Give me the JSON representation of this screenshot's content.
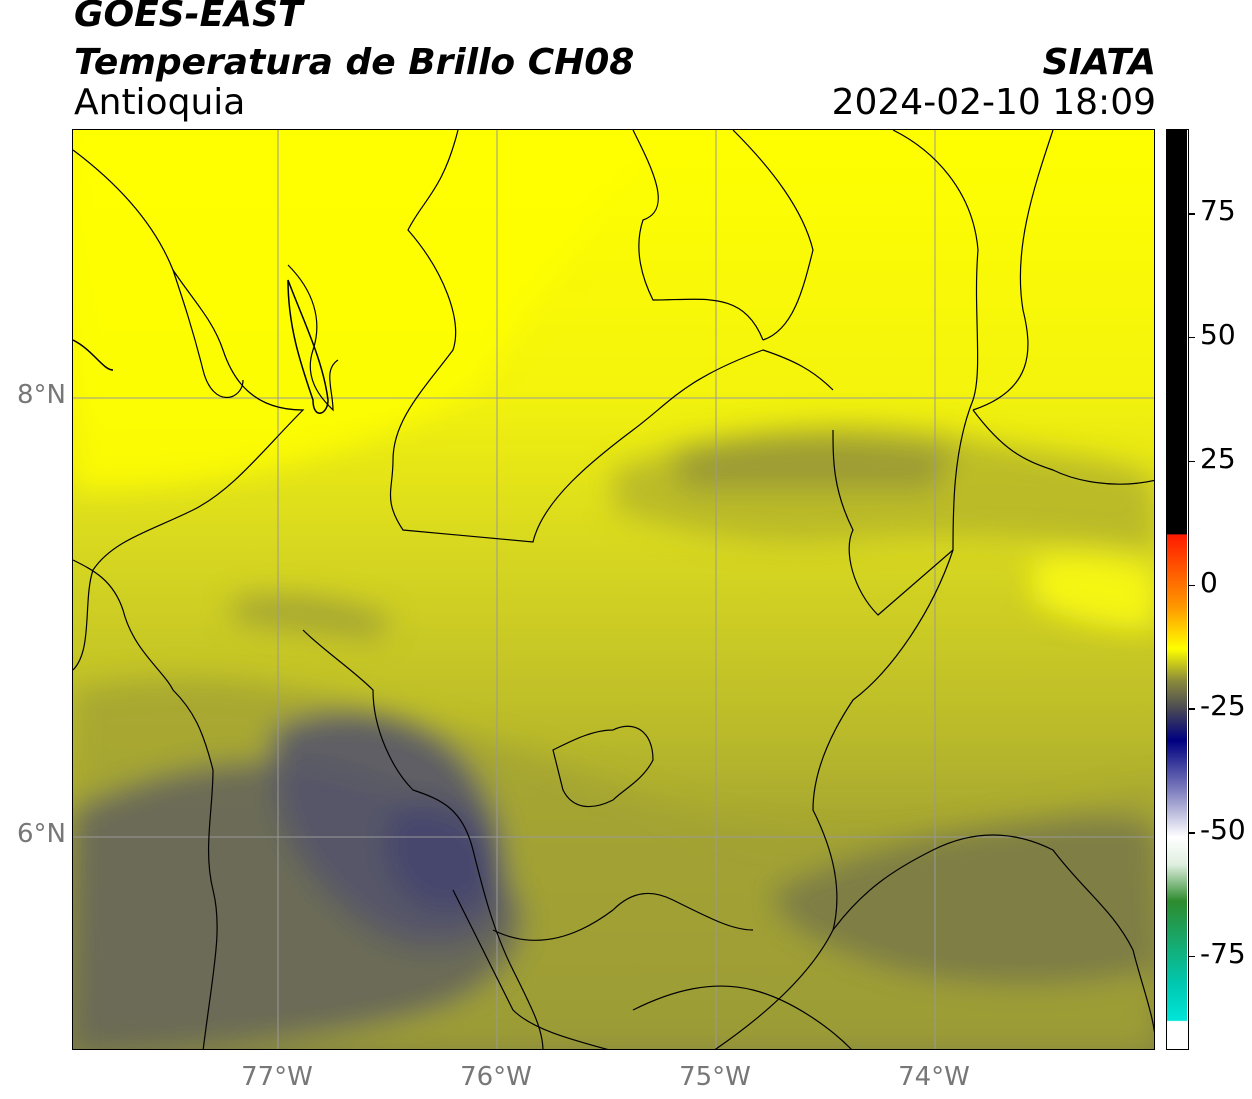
{
  "header": {
    "satellite": "GOES-EAST",
    "product": "Temperatura de Brillo CH08",
    "region": "Antioquia",
    "organization": "SIATA",
    "timestamp": "2024-02-10 18:09"
  },
  "axes": {
    "lat_labels": [
      {
        "label": "8°N",
        "value": 8
      },
      {
        "label": "6°N",
        "value": 6
      }
    ],
    "lon_labels": [
      {
        "label": "77°W",
        "value": -77
      },
      {
        "label": "76°W",
        "value": -76
      },
      {
        "label": "75°W",
        "value": -75
      },
      {
        "label": "74°W",
        "value": -74
      }
    ],
    "lat_range": [
      5.05,
      9.22
    ],
    "lon_range": [
      -77.93,
      -73.02
    ]
  },
  "colorbar": {
    "range": [
      -94,
      92
    ],
    "ticks": [
      {
        "label": "75",
        "value": 75
      },
      {
        "label": "50",
        "value": 50
      },
      {
        "label": "25",
        "value": 25
      },
      {
        "label": "0",
        "value": 0
      },
      {
        "label": "-25",
        "value": -25
      },
      {
        "label": "-50",
        "value": -50
      },
      {
        "label": "-75",
        "value": -75
      }
    ],
    "colors": {
      "black": "#000000",
      "red": "#ff1a00",
      "orange": "#ff9900",
      "yellow": "#ffff00",
      "olive": "#8a8a3a",
      "gray": "#4a4a55",
      "navy": "#000080",
      "white": "#ffffff",
      "green": "#2e8b2e",
      "cyan": "#00e5d8"
    }
  },
  "map_colors": {
    "bright_yellow": "#ffff00",
    "yellow": "#e9e91e",
    "yellow_olive": "#cccc24",
    "olive": "#a4a432",
    "dark_olive": "#7d7d40",
    "gray": "#55554e",
    "gray_blue": "#45456a",
    "borders": "#000000",
    "grid": "#999999"
  }
}
